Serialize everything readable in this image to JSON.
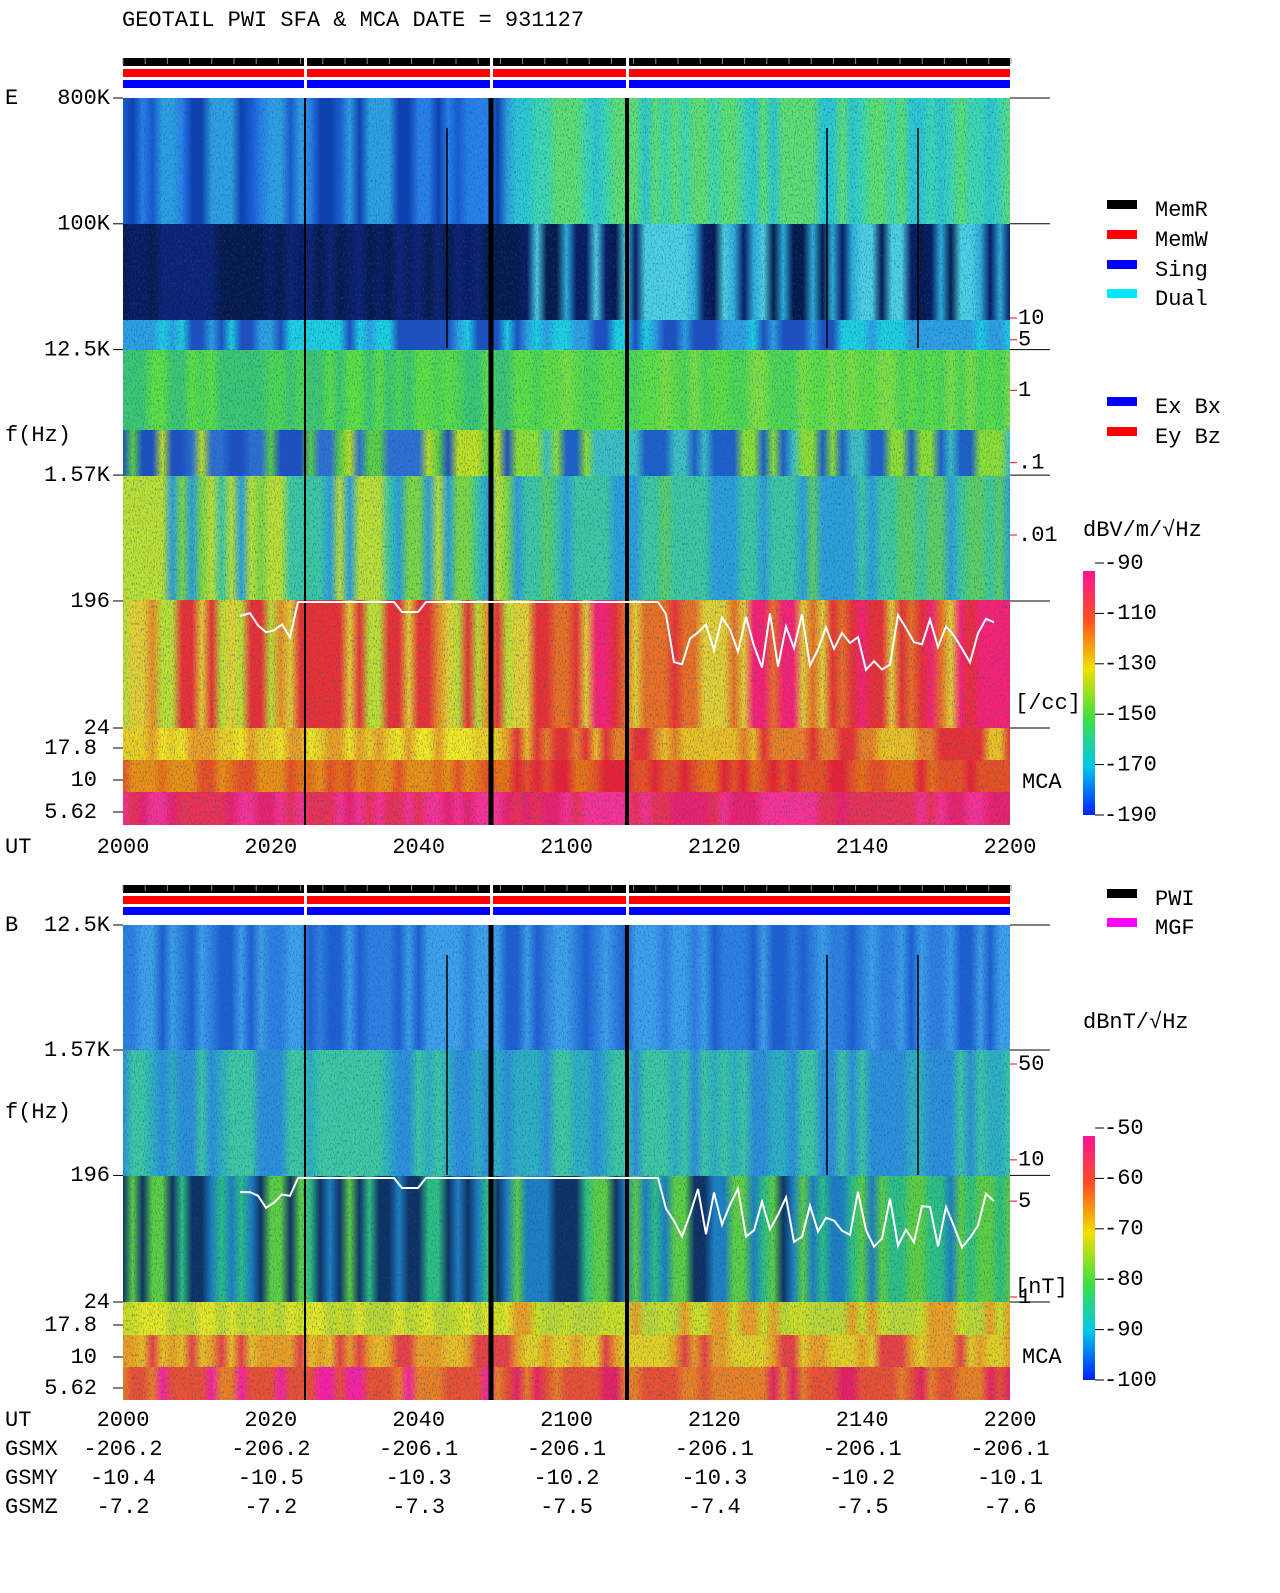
{
  "chart_data": [
    {
      "type": "spectrogram",
      "title": "GEOTAIL  PWI SFA & MCA   DATE = 931127",
      "panel_label": "E",
      "y_label": "f(Hz)",
      "log_y": true,
      "ylim": [
        24,
        800000
      ],
      "yticks": [
        {
          "value": 800000,
          "label": "800K"
        },
        {
          "value": 100000,
          "label": "100K"
        },
        {
          "value": 12500,
          "label": "12.5K"
        },
        {
          "value": 1570,
          "label": "1.57K"
        },
        196,
        24
      ],
      "mca_label": "MCA",
      "mca_channels": [
        17.8,
        10,
        5.62
      ],
      "x_label": "UT",
      "x_categories": [
        "2000",
        "2020",
        "2040",
        "2100",
        "2120",
        "2140",
        "2200"
      ],
      "legend": [
        {
          "name": "MemR",
          "color": "#000000"
        },
        {
          "name": "MemW",
          "color": "#ff0000"
        },
        {
          "name": "Sing",
          "color": "#0000ff"
        },
        {
          "name": "Dual",
          "color": "#00e8ff"
        }
      ],
      "legend2": [
        {
          "name": "Ex Bx",
          "color": "#0000ff"
        },
        {
          "name": "Ey Bz",
          "color": "#ff0000"
        }
      ],
      "colorbar_label": "dBV/m/√Hz",
      "clim": [
        -190,
        -90
      ],
      "cticks": [
        -90,
        -110,
        -130,
        -150,
        -170,
        -190
      ],
      "density_label": "[/cc]",
      "density_lim": [
        0.01,
        10
      ],
      "density_ticks": [
        10,
        5,
        1,
        {
          "value": 0.1,
          "label": ".1"
        },
        {
          "value": 0.01,
          "label": ".01"
        }
      ],
      "density_color": "#ff0000"
    },
    {
      "type": "spectrogram",
      "panel_label": "B",
      "y_label": "f(Hz)",
      "log_y": true,
      "ylim": [
        24,
        12500
      ],
      "yticks": [
        {
          "value": 12500,
          "label": "12.5K"
        },
        {
          "value": 1570,
          "label": "1.57K"
        },
        196,
        24
      ],
      "mca_label": "MCA",
      "mca_channels": [
        17.8,
        10,
        5.62
      ],
      "x_label": "UT",
      "x_categories": [
        "2000",
        "2020",
        "2040",
        "2100",
        "2120",
        "2140",
        "2200"
      ],
      "legend": [
        {
          "name": "PWI",
          "color": "#000000"
        },
        {
          "name": "MGF",
          "color": "#ff00ff"
        }
      ],
      "colorbar_label": "dBnT/√Hz",
      "clim": [
        -100,
        -50
      ],
      "cticks": [
        -50,
        -60,
        -70,
        -80,
        -90,
        -100
      ],
      "density_label": "[nT]",
      "density_lim": [
        1,
        50
      ],
      "density_ticks": [
        50,
        10,
        5,
        1
      ],
      "density_color": "#ff0000",
      "orbit": [
        {
          "label": "GSMX",
          "values": [
            -206.2,
            -206.2,
            -206.1,
            -206.1,
            -206.1,
            -206.1,
            -206.1
          ]
        },
        {
          "label": "GSMY",
          "values": [
            -10.4,
            -10.5,
            -10.3,
            -10.2,
            -10.3,
            -10.2,
            -10.1
          ]
        },
        {
          "label": "GSMZ",
          "values": [
            -7.2,
            -7.2,
            -7.3,
            -7.5,
            -7.4,
            -7.5,
            -7.6
          ]
        }
      ]
    }
  ]
}
